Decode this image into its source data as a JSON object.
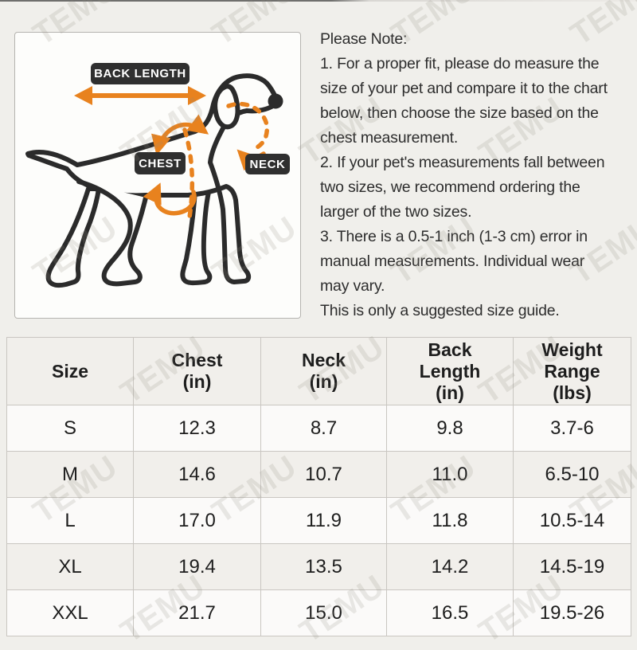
{
  "watermark": {
    "text": "TEMU"
  },
  "diagram": {
    "back_length_label": "BACK LENGTH",
    "chest_label": "CHEST",
    "neck_label": "NECK",
    "accent_color": "#E8821E",
    "label_bg_color": "#2F2F2F",
    "dog_outline_color": "#2B2B2B"
  },
  "note": {
    "lines": [
      "Please Note:",
      "1. For a proper fit, please do measure the",
      "size of your pet and compare it to the chart",
      "below, then choose the size based on the",
      "chest measurement.",
      "2. If your pet's measurements fall between",
      "two sizes, we recommend ordering the",
      "larger of the two sizes.",
      "3. There is a 0.5-1 inch (1-3 cm) error in",
      "manual measurements. Individual wear",
      "may vary.",
      "This is only a suggested size guide."
    ]
  },
  "size_table": {
    "columns": [
      {
        "lines": [
          "Size"
        ]
      },
      {
        "lines": [
          "Chest",
          "(in)"
        ]
      },
      {
        "lines": [
          "Neck",
          "(in)"
        ]
      },
      {
        "lines": [
          "Back",
          "Length",
          "(in)"
        ]
      },
      {
        "lines": [
          "Weight",
          "Range",
          "(lbs)"
        ]
      }
    ],
    "rows": [
      {
        "size": "S",
        "chest_in": "12.3",
        "neck_in": "8.7",
        "back_length_in": "9.8",
        "weight_range_lbs": "3.7-6"
      },
      {
        "size": "M",
        "chest_in": "14.6",
        "neck_in": "10.7",
        "back_length_in": "11.0",
        "weight_range_lbs": "6.5-10"
      },
      {
        "size": "L",
        "chest_in": "17.0",
        "neck_in": "11.9",
        "back_length_in": "11.8",
        "weight_range_lbs": "10.5-14"
      },
      {
        "size": "XL",
        "chest_in": "19.4",
        "neck_in": "13.5",
        "back_length_in": "14.2",
        "weight_range_lbs": "14.5-19"
      },
      {
        "size": "XXL",
        "chest_in": "21.7",
        "neck_in": "15.0",
        "back_length_in": "16.5",
        "weight_range_lbs": "19.5-26"
      }
    ]
  }
}
